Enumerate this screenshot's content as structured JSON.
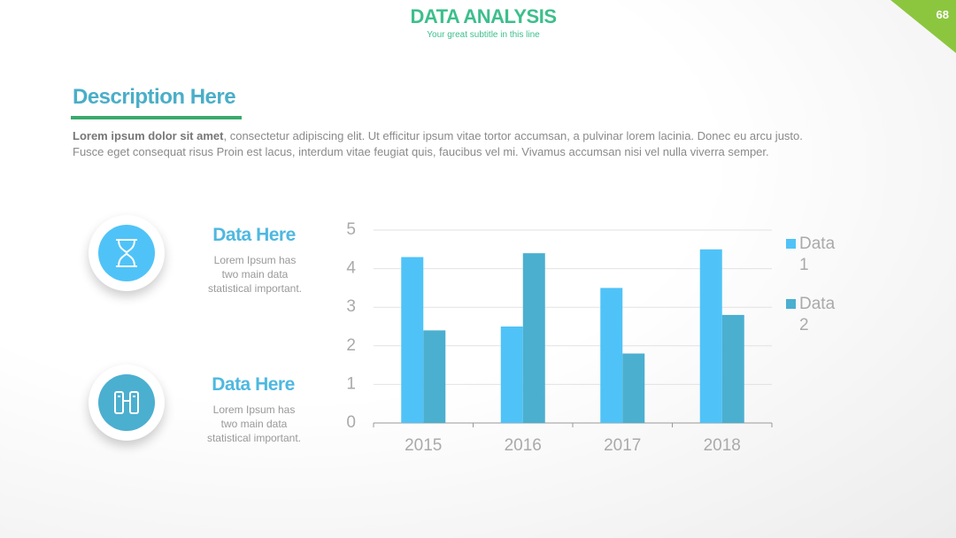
{
  "header": {
    "title": "DATA ANALYSIS",
    "subtitle": "Your great subtitle in this line",
    "page_number": "68"
  },
  "description": {
    "heading": "Description Here",
    "lead": "Lorem ipsum dolor sit amet",
    "text": ", consectetur adipiscing elit. Ut efficitur ipsum vitae tortor accumsan, a pulvinar lorem lacinia. Donec eu arcu justo. Fusce eget consequat risus Proin est lacus, interdum vitae feugiat quis, faucibus vel mi.  Vivamus accumsan nisi vel nulla viverra semper."
  },
  "items": [
    {
      "title": "Data Here",
      "text": "Lorem Ipsum has two main data statistical important."
    },
    {
      "title": "Data Here",
      "text": "Lorem Ipsum has two main data statistical important."
    }
  ],
  "chart_data": {
    "type": "bar",
    "categories": [
      "2015",
      "2016",
      "2017",
      "2018"
    ],
    "series": [
      {
        "name": "Data 1",
        "color": "#4fc3f7",
        "values": [
          4.3,
          2.5,
          3.5,
          4.5
        ]
      },
      {
        "name": "Data 2",
        "color": "#4bafd0",
        "values": [
          2.4,
          4.4,
          1.8,
          2.8
        ]
      }
    ],
    "ylim": [
      0,
      5
    ],
    "yticks": [
      0,
      1,
      2,
      3,
      4,
      5
    ],
    "grid": true,
    "legend": "right"
  }
}
